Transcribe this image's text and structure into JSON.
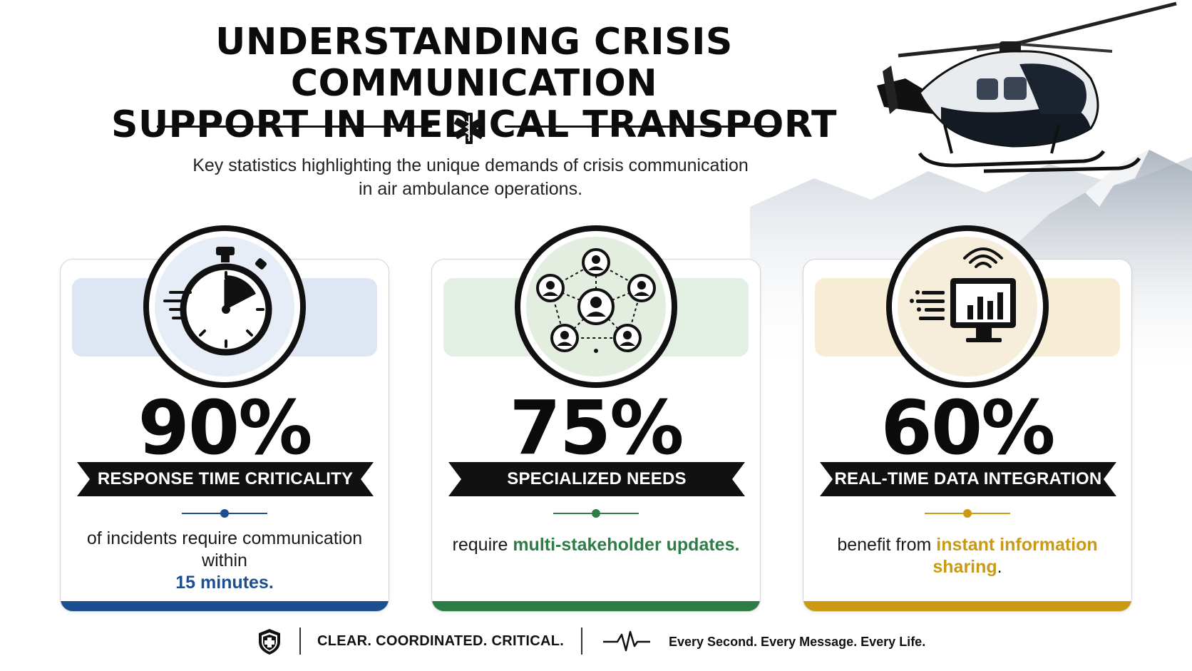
{
  "header": {
    "title_line1": "UNDERSTANDING CRISIS COMMUNICATION",
    "title_line2": "SUPPORT IN MEDICAL TRANSPORT",
    "subtitle_line1": "Key statistics highlighting the unique demands of crisis communication",
    "subtitle_line2": "in air ambulance operations.",
    "divider_icon": "star-of-life-icon"
  },
  "cards": [
    {
      "icon": "stopwatch-icon",
      "value": "90%",
      "label": "RESPONSE TIME CRITICALITY",
      "desc_before": "of incidents require communication within ",
      "desc_highlight": "15 minutes.",
      "desc_after": "",
      "accent": "#1d4e8f",
      "ribbon": "#dde6f2",
      "icon_bg": "#e6edf6"
    },
    {
      "icon": "network-people-icon",
      "value": "75%",
      "label": "SPECIALIZED NEEDS",
      "desc_before": "require ",
      "desc_highlight": "multi-stakeholder updates.",
      "desc_after": "",
      "accent": "#2e7d46",
      "ribbon": "#e3efe3",
      "icon_bg": "#e3eee1"
    },
    {
      "icon": "monitor-data-icon",
      "value": "60%",
      "label": "REAL-TIME DATA INTEGRATION",
      "desc_before": "benefit from ",
      "desc_highlight": "instant information sharing",
      "desc_after": ".",
      "accent": "#c99a12",
      "ribbon": "#f7edd4",
      "icon_bg": "#f6eedb"
    }
  ],
  "footer": {
    "shield_icon": "shield-cross-icon",
    "tagline": "CLEAR. COORDINATED. CRITICAL.",
    "pulse_icon": "heartbeat-icon",
    "motto": "Every Second. Every Message. Every Life."
  }
}
